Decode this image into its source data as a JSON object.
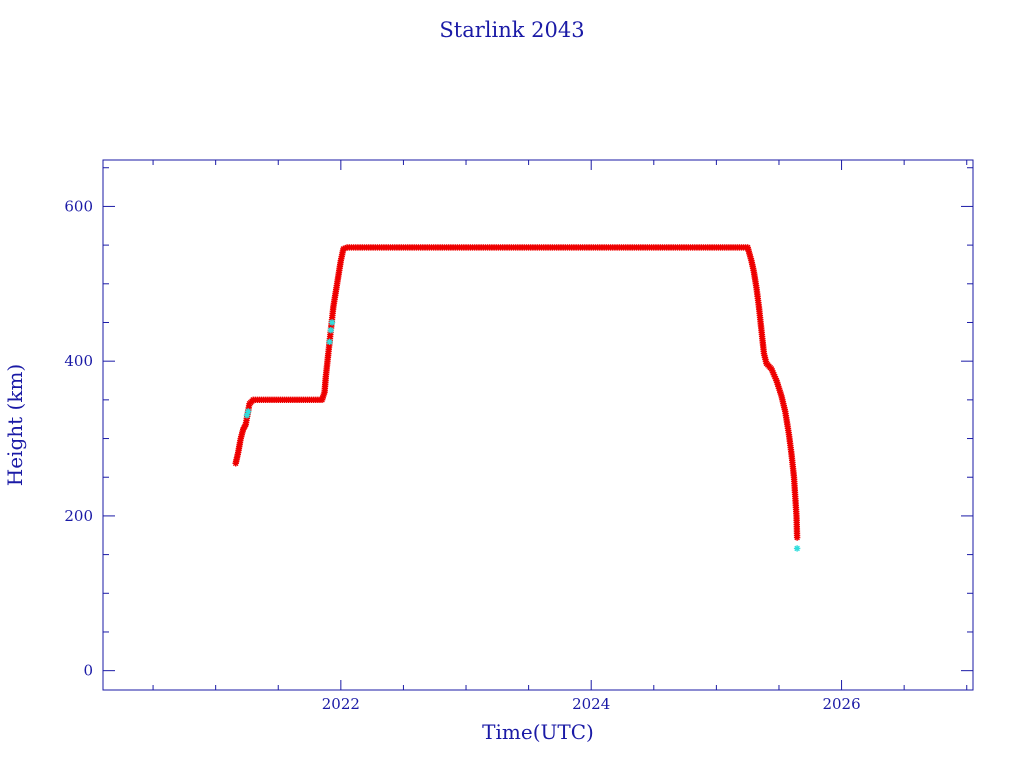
{
  "chart_data": {
    "type": "scatter",
    "title": "Starlink 2043",
    "xlabel": "Time(UTC)",
    "ylabel": "Height (km)",
    "xlim": [
      2020.1,
      2027.05
    ],
    "ylim": [
      -25,
      660
    ],
    "x_ticks": [
      2022,
      2024,
      2026
    ],
    "x_tick_labels": [
      "2022",
      "2024",
      "2026"
    ],
    "y_ticks": [
      0,
      200,
      400,
      600
    ],
    "y_tick_labels": [
      "0",
      "200",
      "400",
      "600"
    ],
    "grid": false,
    "colors": {
      "axis": "#1a1aa6",
      "primary": "#ee0000",
      "secondary": "#33dddd",
      "line": "#000000"
    },
    "series": [
      {
        "color": "#ee0000",
        "marker": "star",
        "points": [
          [
            2021.16,
            268
          ],
          [
            2021.18,
            282
          ],
          [
            2021.2,
            300
          ],
          [
            2021.22,
            312
          ],
          [
            2021.24,
            318
          ],
          [
            2021.27,
            345
          ],
          [
            2021.3,
            350
          ],
          [
            2021.5,
            350
          ],
          [
            2021.7,
            350
          ],
          [
            2021.85,
            350
          ],
          [
            2021.87,
            360
          ],
          [
            2021.88,
            380
          ],
          [
            2021.89,
            395
          ],
          [
            2021.9,
            410
          ],
          [
            2021.94,
            470
          ],
          [
            2021.96,
            490
          ],
          [
            2021.98,
            510
          ],
          [
            2022.0,
            530
          ],
          [
            2022.02,
            545
          ],
          [
            2022.05,
            547
          ],
          [
            2022.5,
            547
          ],
          [
            2023.0,
            547
          ],
          [
            2023.5,
            547
          ],
          [
            2024.0,
            547
          ],
          [
            2024.5,
            547
          ],
          [
            2025.0,
            547
          ],
          [
            2025.25,
            547
          ],
          [
            2025.28,
            530
          ],
          [
            2025.3,
            515
          ],
          [
            2025.32,
            495
          ],
          [
            2025.34,
            470
          ],
          [
            2025.36,
            440
          ],
          [
            2025.38,
            410
          ],
          [
            2025.4,
            397
          ],
          [
            2025.44,
            390
          ],
          [
            2025.48,
            375
          ],
          [
            2025.52,
            355
          ],
          [
            2025.55,
            335
          ],
          [
            2025.58,
            305
          ],
          [
            2025.6,
            280
          ],
          [
            2025.62,
            250
          ],
          [
            2025.63,
            225
          ],
          [
            2025.64,
            200
          ],
          [
            2025.645,
            172
          ]
        ]
      },
      {
        "color": "#33dddd",
        "marker": "star",
        "points": [
          [
            2021.25,
            330
          ],
          [
            2021.26,
            335
          ],
          [
            2021.91,
            425
          ],
          [
            2021.92,
            440
          ],
          [
            2021.93,
            450
          ],
          [
            2025.645,
            158
          ]
        ]
      }
    ]
  }
}
